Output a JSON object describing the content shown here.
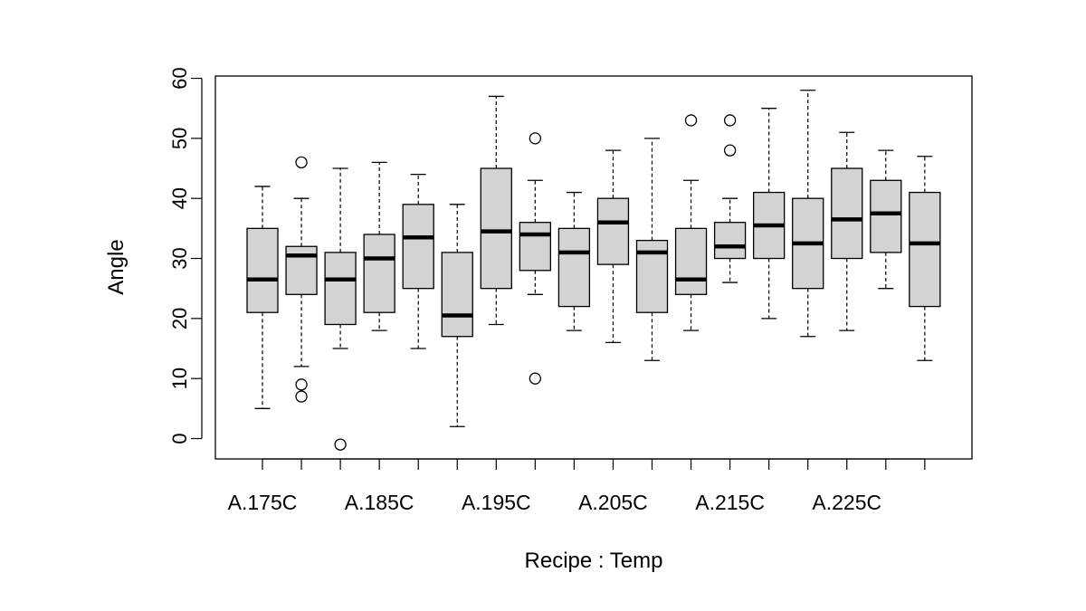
{
  "chart_data": {
    "type": "boxplot",
    "title": "",
    "xlabel": "Recipe : Temp",
    "ylabel": "Angle",
    "ylim": [
      -3.5,
      60.5
    ],
    "yticks": [
      0,
      10,
      20,
      30,
      40,
      50,
      60
    ],
    "grid": false,
    "legend": "none",
    "colors": {
      "box_fill": "#d3d3d3",
      "stroke": "#000000",
      "background": "#ffffff"
    },
    "tick_labels": [
      "A.175C",
      "",
      "",
      "A.185C",
      "",
      "",
      "A.195C",
      "",
      "",
      "A.205C",
      "",
      "",
      "A.215C",
      "",
      "",
      "A.225C",
      "",
      ""
    ],
    "boxes": [
      {
        "whisker_low": 5,
        "q1": 21,
        "median": 26.5,
        "q3": 35,
        "whisker_high": 42,
        "outliers": []
      },
      {
        "whisker_low": 12,
        "q1": 24,
        "median": 30.5,
        "q3": 32,
        "whisker_high": 40,
        "outliers": [
          46,
          9,
          7
        ]
      },
      {
        "whisker_low": 15,
        "q1": 19,
        "median": 26.5,
        "q3": 31,
        "whisker_high": 45,
        "outliers": [
          -1
        ]
      },
      {
        "whisker_low": 18,
        "q1": 21,
        "median": 30,
        "q3": 34,
        "whisker_high": 46,
        "outliers": []
      },
      {
        "whisker_low": 15,
        "q1": 25,
        "median": 33.5,
        "q3": 39,
        "whisker_high": 44,
        "outliers": []
      },
      {
        "whisker_low": 2,
        "q1": 17,
        "median": 20.5,
        "q3": 31,
        "whisker_high": 39,
        "outliers": []
      },
      {
        "whisker_low": 19,
        "q1": 25,
        "median": 34.5,
        "q3": 45,
        "whisker_high": 57,
        "outliers": []
      },
      {
        "whisker_low": 24,
        "q1": 28,
        "median": 34,
        "q3": 36,
        "whisker_high": 43,
        "outliers": [
          50,
          10
        ]
      },
      {
        "whisker_low": 18,
        "q1": 22,
        "median": 31,
        "q3": 35,
        "whisker_high": 41,
        "outliers": []
      },
      {
        "whisker_low": 16,
        "q1": 29,
        "median": 36,
        "q3": 40,
        "whisker_high": 48,
        "outliers": []
      },
      {
        "whisker_low": 13,
        "q1": 21,
        "median": 31,
        "q3": 33,
        "whisker_high": 50,
        "outliers": []
      },
      {
        "whisker_low": 18,
        "q1": 24,
        "median": 26.5,
        "q3": 35,
        "whisker_high": 43,
        "outliers": [
          53
        ]
      },
      {
        "whisker_low": 26,
        "q1": 30,
        "median": 32,
        "q3": 36,
        "whisker_high": 40,
        "outliers": [
          53,
          48
        ]
      },
      {
        "whisker_low": 20,
        "q1": 30,
        "median": 35.5,
        "q3": 41,
        "whisker_high": 55,
        "outliers": []
      },
      {
        "whisker_low": 17,
        "q1": 25,
        "median": 32.5,
        "q3": 40,
        "whisker_high": 58,
        "outliers": []
      },
      {
        "whisker_low": 18,
        "q1": 30,
        "median": 36.5,
        "q3": 45,
        "whisker_high": 51,
        "outliers": []
      },
      {
        "whisker_low": 25,
        "q1": 31,
        "median": 37.5,
        "q3": 43,
        "whisker_high": 48,
        "outliers": []
      },
      {
        "whisker_low": 13,
        "q1": 22,
        "median": 32.5,
        "q3": 41,
        "whisker_high": 47,
        "outliers": []
      }
    ]
  }
}
